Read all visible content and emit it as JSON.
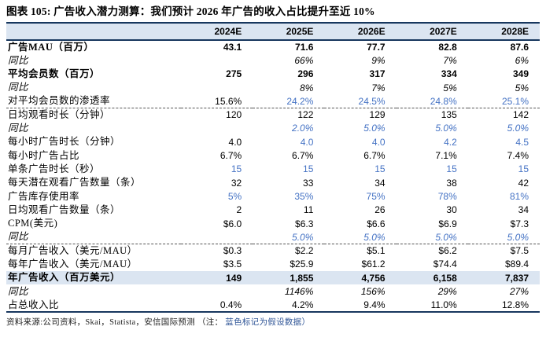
{
  "title": "图表 105: 广告收入潜力测算：我们预计 2026 年广告的收入占比提升至近 10%",
  "chart_data": {
    "type": "table",
    "title": "广告收入潜力测算",
    "columns": [
      "2024E",
      "2025E",
      "2026E",
      "2027E",
      "2028E"
    ],
    "rows": [
      {
        "label": "广告MAU（百万）",
        "label_style": "bold",
        "value_style": "bold",
        "row_style": "",
        "values": [
          "43.1",
          "71.6",
          "77.7",
          "82.8",
          "87.6"
        ],
        "blue": [
          0,
          0,
          0,
          0,
          0
        ]
      },
      {
        "label": "同比",
        "label_style": "italic",
        "value_style": "italic",
        "row_style": "",
        "values": [
          "",
          "66%",
          "9%",
          "7%",
          "6%"
        ],
        "blue": [
          0,
          0,
          0,
          0,
          0
        ]
      },
      {
        "label": "平均会员数（百万）",
        "label_style": "bold",
        "value_style": "bold",
        "row_style": "",
        "values": [
          "275",
          "296",
          "317",
          "334",
          "349"
        ],
        "blue": [
          0,
          0,
          0,
          0,
          0
        ]
      },
      {
        "label": "同比",
        "label_style": "italic",
        "value_style": "italic",
        "row_style": "",
        "values": [
          "",
          "8%",
          "7%",
          "5%",
          "5%"
        ],
        "blue": [
          0,
          0,
          0,
          0,
          0
        ]
      },
      {
        "label": "对平均会员数的渗透率",
        "label_style": "",
        "value_style": "",
        "row_style": "dashed",
        "values": [
          "15.6%",
          "24.2%",
          "24.5%",
          "24.8%",
          "25.1%"
        ],
        "blue": [
          0,
          1,
          1,
          1,
          1
        ]
      },
      {
        "label": "日均观看时长（分钟）",
        "label_style": "",
        "value_style": "",
        "row_style": "",
        "values": [
          "120",
          "122",
          "129",
          "135",
          "142"
        ],
        "blue": [
          0,
          0,
          0,
          0,
          0
        ]
      },
      {
        "label": "同比",
        "label_style": "italic",
        "value_style": "italic",
        "row_style": "",
        "values": [
          "",
          "2.0%",
          "5.0%",
          "5.0%",
          "5.0%"
        ],
        "blue": [
          0,
          1,
          1,
          1,
          1
        ]
      },
      {
        "label": "每小时广告时长（分钟）",
        "label_style": "",
        "value_style": "",
        "row_style": "",
        "values": [
          "4.0",
          "4.0",
          "4.0",
          "4.2",
          "4.5"
        ],
        "blue": [
          0,
          1,
          1,
          1,
          1
        ]
      },
      {
        "label": "每小时广告占比",
        "label_style": "",
        "value_style": "",
        "row_style": "",
        "values": [
          "6.7%",
          "6.7%",
          "6.7%",
          "7.1%",
          "7.4%"
        ],
        "blue": [
          0,
          0,
          0,
          0,
          0
        ]
      },
      {
        "label": "单条广告时长（秒）",
        "label_style": "",
        "value_style": "",
        "row_style": "",
        "values": [
          "15",
          "15",
          "15",
          "15",
          "15"
        ],
        "blue": [
          1,
          1,
          1,
          1,
          1
        ]
      },
      {
        "label": "每天潜在观看广告数量（条）",
        "label_style": "",
        "value_style": "",
        "row_style": "",
        "values": [
          "32",
          "33",
          "34",
          "38",
          "42"
        ],
        "blue": [
          0,
          0,
          0,
          0,
          0
        ]
      },
      {
        "label": "广告库存使用率",
        "label_style": "",
        "value_style": "",
        "row_style": "",
        "values": [
          "5%",
          "35%",
          "75%",
          "78%",
          "81%"
        ],
        "blue": [
          1,
          1,
          1,
          1,
          1
        ]
      },
      {
        "label": "日均观看广告数量（条）",
        "label_style": "",
        "value_style": "",
        "row_style": "",
        "values": [
          "2",
          "11",
          "26",
          "30",
          "34"
        ],
        "blue": [
          0,
          0,
          0,
          0,
          0
        ]
      },
      {
        "label": "CPM(美元)",
        "label_style": "",
        "value_style": "",
        "row_style": "",
        "values": [
          "$6.0",
          "$6.3",
          "$6.6",
          "$6.9",
          "$7.3"
        ],
        "blue": [
          0,
          0,
          0,
          0,
          0
        ]
      },
      {
        "label": "同比",
        "label_style": "italic",
        "value_style": "italic",
        "row_style": "dashed",
        "values": [
          "",
          "5.0%",
          "5.0%",
          "5.0%",
          "5.0%"
        ],
        "blue": [
          0,
          1,
          1,
          1,
          1
        ]
      },
      {
        "label": "每月广告收入（美元/MAU）",
        "label_style": "",
        "value_style": "",
        "row_style": "",
        "values": [
          "$0.3",
          "$2.2",
          "$5.1",
          "$6.2",
          "$7.5"
        ],
        "blue": [
          0,
          0,
          0,
          0,
          0
        ]
      },
      {
        "label": "每年广告收入（美元/MAU）",
        "label_style": "",
        "value_style": "",
        "row_style": "",
        "values": [
          "$3.5",
          "$25.9",
          "$61.2",
          "$74.4",
          "$89.4"
        ],
        "blue": [
          0,
          0,
          0,
          0,
          0
        ]
      },
      {
        "label": "年广告收入（百万美元）",
        "label_style": "bold",
        "value_style": "bold",
        "row_style": "highlight",
        "values": [
          "149",
          "1,855",
          "4,756",
          "6,158",
          "7,837"
        ],
        "blue": [
          0,
          0,
          0,
          0,
          0
        ]
      },
      {
        "label": "同比",
        "label_style": "italic",
        "value_style": "italic",
        "row_style": "",
        "values": [
          "",
          "1146%",
          "156%",
          "29%",
          "27%"
        ],
        "blue": [
          0,
          0,
          0,
          0,
          0
        ]
      },
      {
        "label": "占总收入比",
        "label_style": "",
        "value_style": "",
        "row_style": "last",
        "values": [
          "0.4%",
          "4.2%",
          "9.4%",
          "11.0%",
          "12.8%"
        ],
        "blue": [
          0,
          0,
          0,
          0,
          0
        ]
      }
    ]
  },
  "footer": {
    "source": "资料来源:公司资料，Skai，Statista，安信国际预测 ",
    "note_prefix": "（注：",
    "note": "蓝色标记为假设数据）"
  },
  "colors": {
    "assumption_blue": "#4472C4",
    "header_bg": "#DBE5F1",
    "highlight_bg": "#DBE5F1",
    "border_navy": "#17375E"
  }
}
